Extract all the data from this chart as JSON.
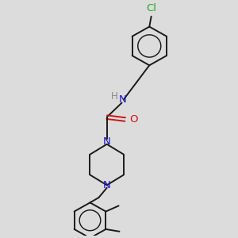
{
  "bg_color": "#dcdcdc",
  "bond_color": "#1a1a1a",
  "N_color": "#1414cc",
  "O_color": "#cc1414",
  "Cl_color": "#22aa22",
  "H_color": "#888888",
  "figsize": [
    3.0,
    3.0
  ],
  "dpi": 100,
  "xlim": [
    0,
    10
  ],
  "ylim": [
    0,
    10
  ]
}
